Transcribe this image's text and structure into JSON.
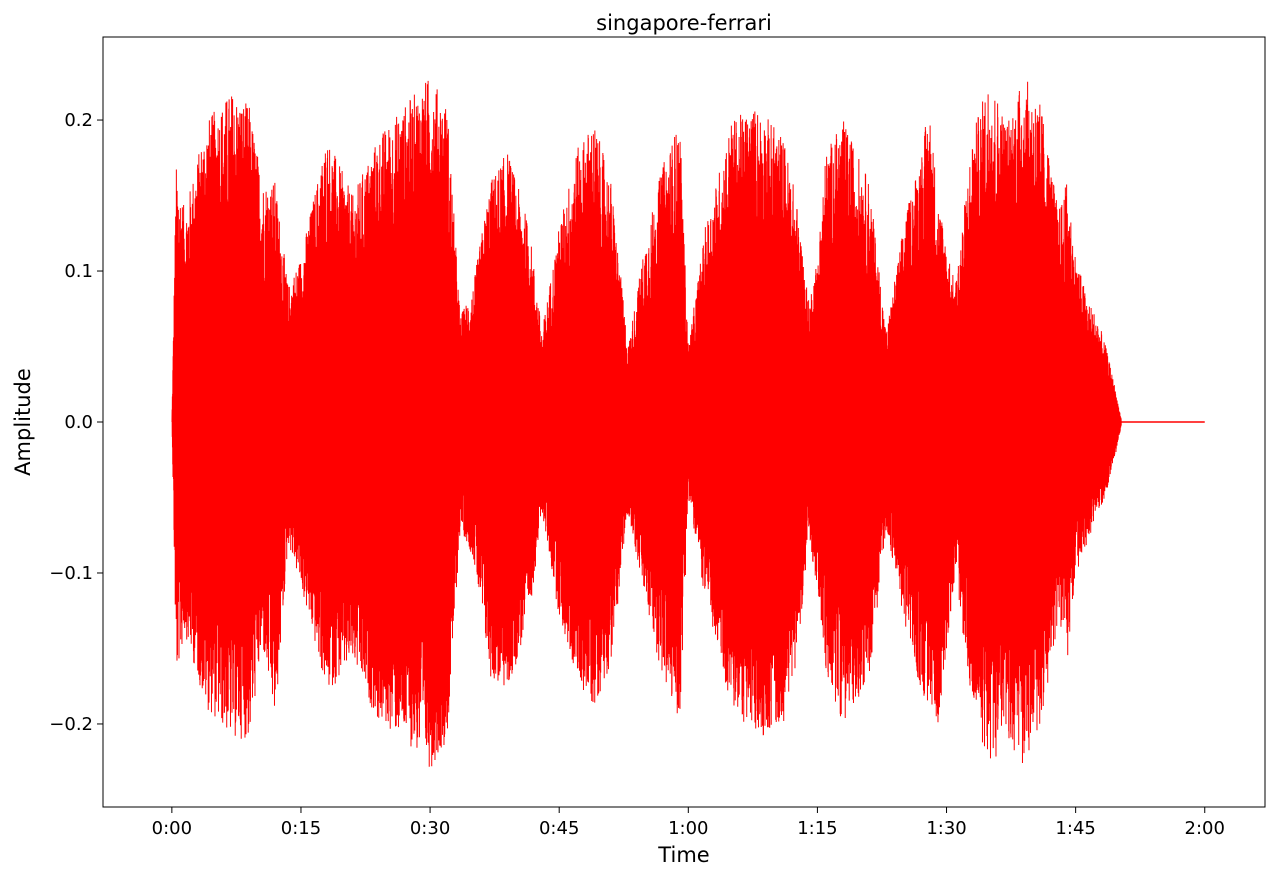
{
  "chart_data": {
    "type": "line",
    "title": "singapore-ferrari",
    "xlabel": "Time",
    "ylabel": "Amplitude",
    "xlim": [
      -8,
      127
    ],
    "ylim": [
      -0.255,
      0.255
    ],
    "x_ticks": [
      {
        "value": 0,
        "label": "0:00"
      },
      {
        "value": 15,
        "label": "0:15"
      },
      {
        "value": 30,
        "label": "0:30"
      },
      {
        "value": 45,
        "label": "0:45"
      },
      {
        "value": 60,
        "label": "1:00"
      },
      {
        "value": 75,
        "label": "1:15"
      },
      {
        "value": 90,
        "label": "1:30"
      },
      {
        "value": 105,
        "label": "1:45"
      },
      {
        "value": 120,
        "label": "2:00"
      }
    ],
    "y_ticks": [
      {
        "value": -0.2,
        "label": "−0.2"
      },
      {
        "value": -0.1,
        "label": "−0.1"
      },
      {
        "value": 0.0,
        "label": "0.0"
      },
      {
        "value": 0.1,
        "label": "0.1"
      },
      {
        "value": 0.2,
        "label": "0.2"
      }
    ],
    "grid": false,
    "line_color": "#ff0000",
    "envelope": {
      "time_s": [
        0,
        0.5,
        1.5,
        4,
        7,
        9,
        10.5,
        12,
        13.5,
        15,
        18,
        21,
        24,
        27,
        30,
        32,
        33.5,
        35,
        37,
        39,
        41.5,
        43,
        45,
        47,
        49,
        51,
        53,
        55,
        57,
        59,
        60,
        62,
        65,
        68,
        71,
        72.5,
        74,
        75,
        76,
        78,
        81,
        83,
        85,
        87,
        88,
        89,
        91,
        93,
        95,
        97,
        99,
        101,
        103,
        104,
        105,
        106.5,
        107.5,
        108.5,
        109.5,
        110.3,
        120
      ],
      "upper": [
        0.0,
        0.17,
        0.14,
        0.2,
        0.22,
        0.21,
        0.16,
        0.16,
        0.09,
        0.11,
        0.19,
        0.15,
        0.19,
        0.21,
        0.23,
        0.21,
        0.07,
        0.09,
        0.16,
        0.18,
        0.13,
        0.06,
        0.13,
        0.18,
        0.2,
        0.16,
        0.05,
        0.12,
        0.17,
        0.2,
        0.05,
        0.13,
        0.2,
        0.21,
        0.19,
        0.15,
        0.08,
        0.11,
        0.18,
        0.2,
        0.16,
        0.06,
        0.13,
        0.18,
        0.21,
        0.15,
        0.09,
        0.19,
        0.23,
        0.2,
        0.23,
        0.21,
        0.14,
        0.16,
        0.11,
        0.08,
        0.07,
        0.05,
        0.025,
        0.002,
        0.0
      ],
      "lower": [
        0.0,
        -0.17,
        -0.14,
        -0.19,
        -0.21,
        -0.21,
        -0.15,
        -0.2,
        -0.08,
        -0.11,
        -0.18,
        -0.16,
        -0.2,
        -0.21,
        -0.23,
        -0.21,
        -0.07,
        -0.09,
        -0.17,
        -0.18,
        -0.13,
        -0.06,
        -0.13,
        -0.17,
        -0.19,
        -0.16,
        -0.06,
        -0.12,
        -0.17,
        -0.2,
        -0.05,
        -0.12,
        -0.19,
        -0.21,
        -0.2,
        -0.16,
        -0.08,
        -0.11,
        -0.17,
        -0.2,
        -0.17,
        -0.07,
        -0.13,
        -0.18,
        -0.19,
        -0.2,
        -0.1,
        -0.19,
        -0.23,
        -0.21,
        -0.23,
        -0.2,
        -0.13,
        -0.16,
        -0.1,
        -0.08,
        -0.06,
        -0.05,
        -0.025,
        -0.002,
        0.0
      ]
    }
  }
}
